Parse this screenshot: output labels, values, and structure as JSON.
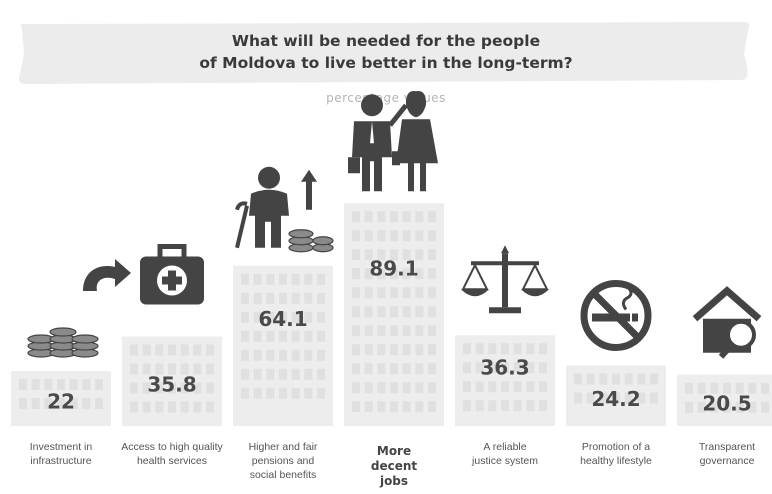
{
  "title": {
    "lines": [
      "What will be needed for the people",
      "of Moldova to live better in the long-term?"
    ]
  },
  "subtitle": "percentage values",
  "chart_data": {
    "type": "bar",
    "title": "What will be needed for the people of Moldova to live better in the long-term?",
    "subtitle": "percentage values",
    "categories": [
      "Investment in infrastructure",
      "Access to high quality health services",
      "Higher and fair pensions and social benefits",
      "More decent jobs",
      "A reliable justice system",
      "Promotion of a healthy lifestyle",
      "Transparent governance"
    ],
    "category_lines": [
      [
        "Investment in",
        "infrastructure"
      ],
      [
        "Access to high quality",
        "health services"
      ],
      [
        "Higher and fair",
        "pensions and",
        "social benefits"
      ],
      [
        "More",
        "decent",
        "jobs"
      ],
      [
        "A reliable",
        "justice system"
      ],
      [
        "Promotion of a",
        "healthy lifestyle"
      ],
      [
        "Transparent",
        "governance"
      ]
    ],
    "values": [
      22,
      35.8,
      64.1,
      89.1,
      36.3,
      24.2,
      20.5
    ],
    "value_labels": [
      "22",
      "35.8",
      "64.1",
      "89.1",
      "36.3",
      "24.2",
      "20.5"
    ],
    "icons": [
      "coins-arrow-icon",
      "first-aid-kit-icon",
      "elderly-coins-icon",
      "business-people-icon",
      "scales-of-justice-icon",
      "no-smoking-icon",
      "house-magnifier-icon"
    ],
    "ylim": [
      0,
      100
    ],
    "colors": {
      "bar": "#ededed",
      "window": "#e0e0e0",
      "icon": "#444444",
      "value": "#4a4a4a"
    }
  }
}
